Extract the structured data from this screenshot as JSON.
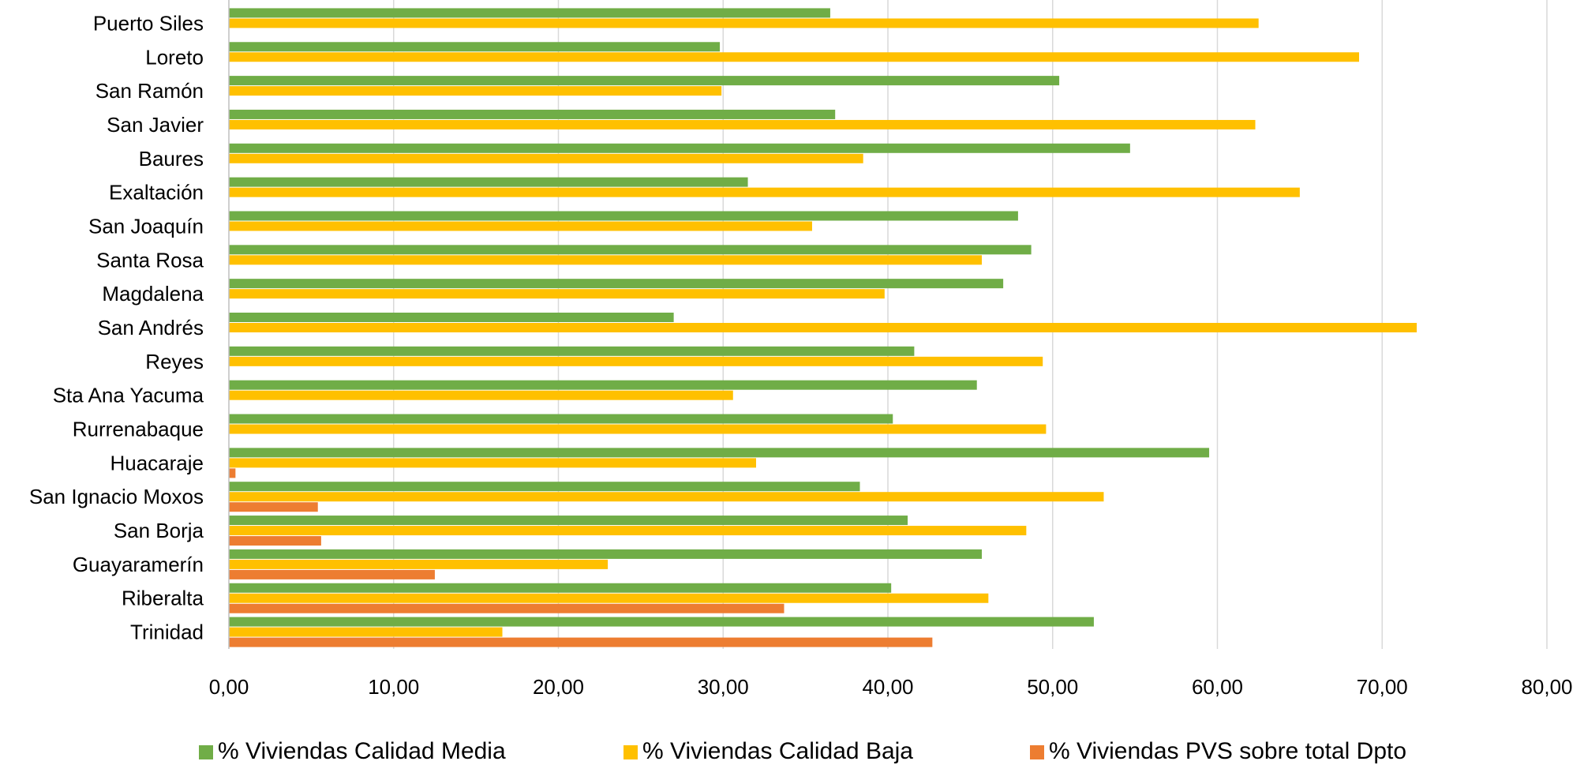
{
  "chart_data": {
    "type": "bar",
    "orientation": "horizontal",
    "title": "",
    "xlabel": "",
    "ylabel": "",
    "xlim": [
      0,
      80
    ],
    "x_ticks": [
      "0,00",
      "10,00",
      "20,00",
      "30,00",
      "40,00",
      "50,00",
      "60,00",
      "70,00",
      "80,00"
    ],
    "grid": true,
    "legend_position": "bottom",
    "categories": [
      "Puerto Siles",
      "Loreto",
      "San Ramón",
      "San Javier",
      "Baures",
      "Exaltación",
      "San Joaquín",
      "Santa Rosa",
      "Magdalena",
      "San Andrés",
      "Reyes",
      "Sta Ana Yacuma",
      "Rurrenabaque",
      "Huacaraje",
      "San Ignacio Moxos",
      "San Borja",
      "Guayaramerín",
      "Riberalta",
      "Trinidad"
    ],
    "series": [
      {
        "name": "% Viviendas Calidad Media",
        "color": "#70ad47",
        "values": [
          36.5,
          29.8,
          50.4,
          36.8,
          54.7,
          31.5,
          47.9,
          48.7,
          47.0,
          27.0,
          41.6,
          45.4,
          40.3,
          59.5,
          38.3,
          41.2,
          45.7,
          40.2,
          52.5
        ]
      },
      {
        "name": "% Viviendas Calidad Baja",
        "color": "#ffc000",
        "values": [
          62.5,
          68.6,
          29.9,
          62.3,
          38.5,
          65.0,
          35.4,
          45.7,
          39.8,
          72.1,
          49.4,
          30.6,
          49.6,
          32.0,
          53.1,
          48.4,
          23.0,
          46.1,
          16.6
        ]
      },
      {
        "name": "% Viviendas PVS sobre total Dpto",
        "color": "#ed7d31",
        "values": [
          0,
          0,
          0,
          0,
          0,
          0,
          0,
          0,
          0,
          0,
          0,
          0,
          0,
          0.4,
          5.4,
          5.6,
          12.5,
          33.7,
          42.7
        ]
      }
    ]
  }
}
